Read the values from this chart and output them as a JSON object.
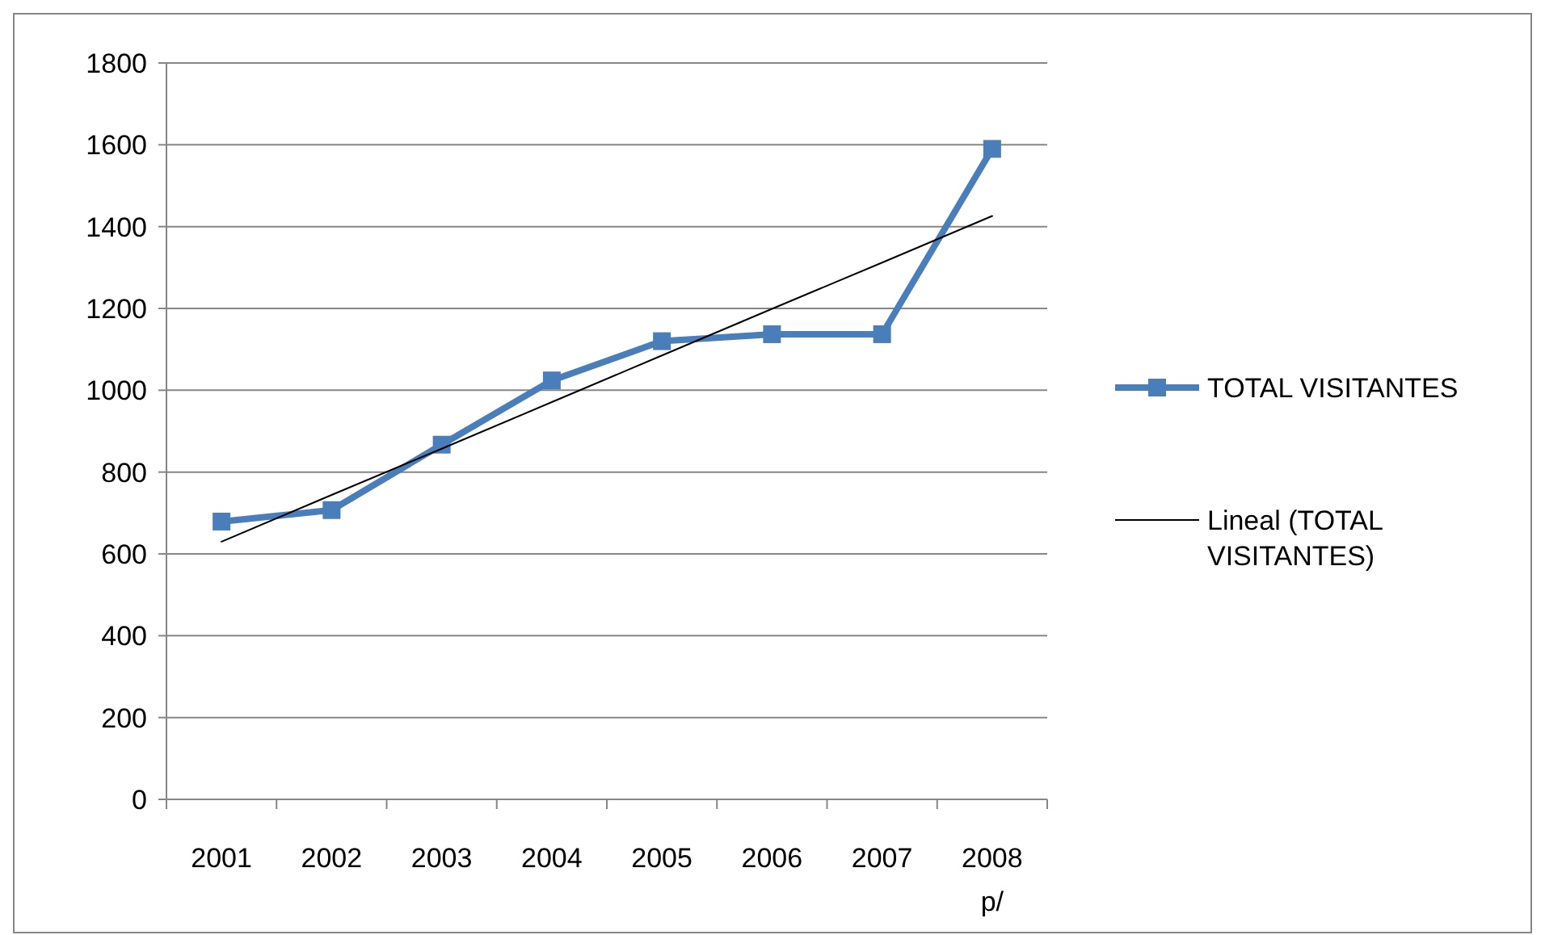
{
  "chart_data": {
    "type": "line",
    "categories": [
      "2001",
      "2002",
      "2003",
      "2004",
      "2005",
      "2006",
      "2007",
      "2008 p/"
    ],
    "series": [
      {
        "name": "TOTAL VISITANTES",
        "color": "#4a7ebb",
        "values": [
          679,
          707,
          867,
          1024,
          1120,
          1137,
          1137,
          1590
        ],
        "marker": "square"
      },
      {
        "name": "Lineal (TOTAL VISITANTES)",
        "color": "#000000",
        "values": [
          630,
          744,
          857,
          971,
          1085,
          1199,
          1312,
          1426
        ],
        "marker": "none"
      }
    ],
    "ylim": [
      0,
      1800
    ],
    "yticks": [
      0,
      200,
      400,
      600,
      800,
      1000,
      1200,
      1400,
      1600,
      1800
    ],
    "grid": "y",
    "legend": "right"
  }
}
